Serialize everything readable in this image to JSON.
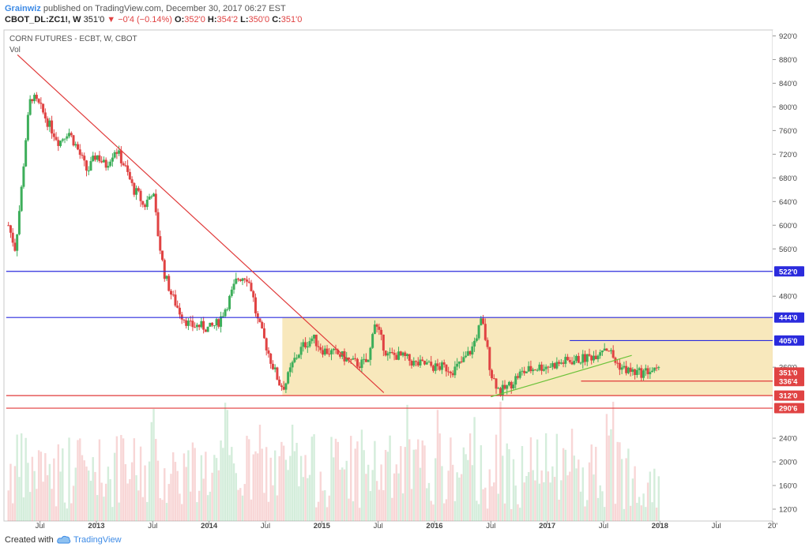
{
  "header": {
    "author": "Grainwiz",
    "published": "published on TradingView.com, December 30, 2017 06:27 EST",
    "symbol": "CBOT_DL:ZC1!, W",
    "last": "351'0",
    "change": "−0'4 (−0.14%)",
    "o_label": "O:",
    "o": "352'0",
    "h_label": "H:",
    "h": "354'2",
    "l_label": "L:",
    "l": "350'0",
    "c_label": "C:",
    "c": "351'0"
  },
  "footer": {
    "created": "Created with",
    "brand": "TradingView"
  },
  "colors": {
    "up": "#3dae5a",
    "down": "#e04343",
    "zone": "#f7e4b0",
    "blue_line": "#2b2bdd",
    "red_line": "#e03a3a",
    "green_line": "#6cc23a"
  },
  "chart_data": {
    "type": "candlestick",
    "title": "CORN FUTURES - ECBT, W, CBOT",
    "volume_label": "Vol",
    "x_ticks": [
      "Jul",
      "2013",
      "Jul",
      "2014",
      "Jul",
      "2015",
      "Jul",
      "2016",
      "Jul",
      "2017",
      "Jul",
      "2018",
      "Jul",
      "20'"
    ],
    "x_tick_dates": [
      2012.5,
      2013.0,
      2013.5,
      2014.0,
      2014.5,
      2015.0,
      2015.5,
      2016.0,
      2016.5,
      2017.0,
      2017.5,
      2018.0,
      2018.5,
      2019.0
    ],
    "y_ticks": [
      "920'0",
      "880'0",
      "840'0",
      "800'0",
      "760'0",
      "720'0",
      "680'0",
      "640'0",
      "600'0",
      "560'0",
      "480'0",
      "360'0",
      "240'0",
      "200'0",
      "160'0",
      "120'0"
    ],
    "y_tick_values": [
      920,
      880,
      840,
      800,
      760,
      720,
      680,
      640,
      600,
      560,
      480,
      360,
      240,
      200,
      160,
      120
    ],
    "price_labels": [
      {
        "text": "522'0",
        "value": 522,
        "color": "#2b2bdd"
      },
      {
        "text": "444'0",
        "value": 444,
        "color": "#2b2bdd"
      },
      {
        "text": "405'0",
        "value": 405,
        "color": "#2b2bdd"
      },
      {
        "text": "351'0",
        "value": 351,
        "color": "#e04343"
      },
      {
        "text": "336'4",
        "value": 336.5,
        "color": "#e04343"
      },
      {
        "text": "312'0",
        "value": 312,
        "color": "#e04343"
      },
      {
        "text": "290'6",
        "value": 290.75,
        "color": "#e04343"
      }
    ],
    "horizontal_lines": [
      {
        "value": 522,
        "color": "blue",
        "from": 2012.2,
        "to": 2019.0
      },
      {
        "value": 444,
        "color": "blue",
        "from": 2012.2,
        "to": 2019.0
      },
      {
        "value": 405,
        "color": "blue",
        "from": 2017.2,
        "to": 2019.0
      },
      {
        "value": 336.5,
        "color": "red",
        "from": 2017.3,
        "to": 2019.0
      },
      {
        "value": 312,
        "color": "red",
        "from": 2012.2,
        "to": 2019.0
      },
      {
        "value": 290.75,
        "color": "red",
        "from": 2012.2,
        "to": 2019.0
      }
    ],
    "trendlines": [
      {
        "color": "red",
        "from": [
          2012.3,
          888
        ],
        "to": [
          2015.55,
          317
        ]
      },
      {
        "color": "green",
        "from": [
          2016.5,
          310
        ],
        "to": [
          2017.75,
          380
        ]
      }
    ],
    "zone": {
      "from": 2014.65,
      "to": 2019.0,
      "low": 312,
      "high": 444
    },
    "price_path": [
      [
        2012.22,
        600
      ],
      [
        2012.28,
        560
      ],
      [
        2012.33,
        650
      ],
      [
        2012.38,
        760
      ],
      [
        2012.42,
        820
      ],
      [
        2012.5,
        800
      ],
      [
        2012.58,
        770
      ],
      [
        2012.67,
        740
      ],
      [
        2012.75,
        760
      ],
      [
        2012.83,
        730
      ],
      [
        2012.92,
        690
      ],
      [
        2013.0,
        720
      ],
      [
        2013.08,
        700
      ],
      [
        2013.17,
        730
      ],
      [
        2013.25,
        700
      ],
      [
        2013.33,
        660
      ],
      [
        2013.38,
        650
      ],
      [
        2013.42,
        630
      ],
      [
        2013.5,
        660
      ],
      [
        2013.55,
        580
      ],
      [
        2013.6,
        520
      ],
      [
        2013.67,
        480
      ],
      [
        2013.75,
        450
      ],
      [
        2013.83,
        430
      ],
      [
        2013.92,
        430
      ],
      [
        2014.0,
        425
      ],
      [
        2014.08,
        435
      ],
      [
        2014.17,
        470
      ],
      [
        2014.25,
        510
      ],
      [
        2014.33,
        515
      ],
      [
        2014.38,
        490
      ],
      [
        2014.42,
        445
      ],
      [
        2014.5,
        400
      ],
      [
        2014.55,
        370
      ],
      [
        2014.63,
        330
      ],
      [
        2014.67,
        328
      ],
      [
        2014.75,
        370
      ],
      [
        2014.83,
        395
      ],
      [
        2014.92,
        410
      ],
      [
        2015.0,
        390
      ],
      [
        2015.08,
        385
      ],
      [
        2015.17,
        380
      ],
      [
        2015.25,
        370
      ],
      [
        2015.33,
        365
      ],
      [
        2015.42,
        370
      ],
      [
        2015.46,
        440
      ],
      [
        2015.5,
        420
      ],
      [
        2015.58,
        380
      ],
      [
        2015.67,
        380
      ],
      [
        2015.75,
        375
      ],
      [
        2015.83,
        365
      ],
      [
        2015.92,
        365
      ],
      [
        2016.0,
        360
      ],
      [
        2016.08,
        360
      ],
      [
        2016.17,
        355
      ],
      [
        2016.25,
        370
      ],
      [
        2016.33,
        390
      ],
      [
        2016.42,
        440
      ],
      [
        2016.46,
        400
      ],
      [
        2016.5,
        350
      ],
      [
        2016.58,
        318
      ],
      [
        2016.67,
        330
      ],
      [
        2016.75,
        348
      ],
      [
        2016.83,
        355
      ],
      [
        2016.92,
        360
      ],
      [
        2017.0,
        362
      ],
      [
        2017.08,
        365
      ],
      [
        2017.17,
        370
      ],
      [
        2017.25,
        372
      ],
      [
        2017.33,
        375
      ],
      [
        2017.42,
        380
      ],
      [
        2017.5,
        395
      ],
      [
        2017.55,
        390
      ],
      [
        2017.6,
        370
      ],
      [
        2017.67,
        358
      ],
      [
        2017.75,
        352
      ],
      [
        2017.83,
        350
      ],
      [
        2017.92,
        355
      ],
      [
        2017.99,
        351
      ]
    ],
    "volume_range": [
      100,
      320
    ],
    "ylim": [
      100,
      930
    ],
    "xlim": [
      2012.18,
      2019.0
    ]
  }
}
